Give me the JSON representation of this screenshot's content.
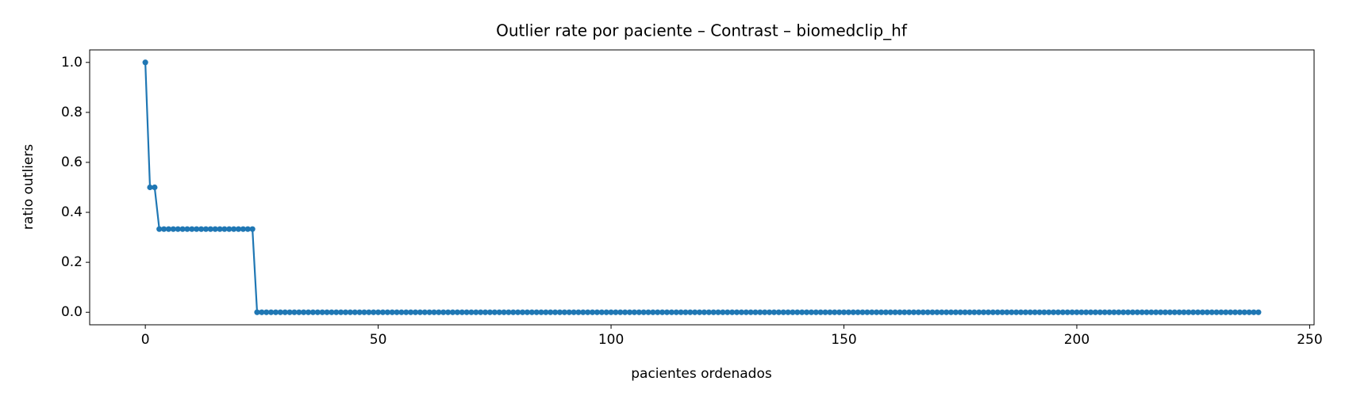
{
  "chart_data": {
    "type": "line",
    "title": "Outlier rate por paciente – Contrast – biomedclip_hf",
    "x_label": "pacientes ordenados",
    "y_label": "ratio outliers",
    "x": [
      0,
      1,
      2,
      3,
      4,
      5,
      6,
      7,
      8,
      9,
      10,
      11,
      12,
      13,
      14,
      15,
      16,
      17,
      18,
      19,
      20,
      21,
      22,
      23,
      24,
      25,
      26,
      27,
      28,
      29,
      30,
      31,
      32,
      33,
      34,
      35,
      36,
      37,
      38,
      39,
      40,
      41,
      42,
      43,
      44,
      45,
      46,
      47,
      48,
      49,
      50,
      51,
      52,
      53,
      54,
      55,
      56,
      57,
      58,
      59,
      60,
      61,
      62,
      63,
      64,
      65,
      66,
      67,
      68,
      69,
      70,
      71,
      72,
      73,
      74,
      75,
      76,
      77,
      78,
      79,
      80,
      81,
      82,
      83,
      84,
      85,
      86,
      87,
      88,
      89,
      90,
      91,
      92,
      93,
      94,
      95,
      96,
      97,
      98,
      99,
      100,
      101,
      102,
      103,
      104,
      105,
      106,
      107,
      108,
      109,
      110,
      111,
      112,
      113,
      114,
      115,
      116,
      117,
      118,
      119,
      120,
      121,
      122,
      123,
      124,
      125,
      126,
      127,
      128,
      129,
      130,
      131,
      132,
      133,
      134,
      135,
      136,
      137,
      138,
      139,
      140,
      141,
      142,
      143,
      144,
      145,
      146,
      147,
      148,
      149,
      150,
      151,
      152,
      153,
      154,
      155,
      156,
      157,
      158,
      159,
      160,
      161,
      162,
      163,
      164,
      165,
      166,
      167,
      168,
      169,
      170,
      171,
      172,
      173,
      174,
      175,
      176,
      177,
      178,
      179,
      180,
      181,
      182,
      183,
      184,
      185,
      186,
      187,
      188,
      189,
      190,
      191,
      192,
      193,
      194,
      195,
      196,
      197,
      198,
      199,
      200,
      201,
      202,
      203,
      204,
      205,
      206,
      207,
      208,
      209,
      210,
      211,
      212,
      213,
      214,
      215,
      216,
      217,
      218,
      219,
      220,
      221,
      222,
      223,
      224,
      225,
      226,
      227,
      228,
      229,
      230,
      231,
      232,
      233,
      234,
      235,
      236,
      237,
      238,
      239
    ],
    "series": [
      {
        "color": "#1f77b4",
        "values": [
          1.0,
          0.5,
          0.5,
          0.333,
          0.333,
          0.333,
          0.333,
          0.333,
          0.333,
          0.333,
          0.333,
          0.333,
          0.333,
          0.333,
          0.333,
          0.333,
          0.333,
          0.333,
          0.333,
          0.333,
          0.333,
          0.333,
          0.333,
          0.333,
          0,
          0,
          0,
          0,
          0,
          0,
          0,
          0,
          0,
          0,
          0,
          0,
          0,
          0,
          0,
          0,
          0,
          0,
          0,
          0,
          0,
          0,
          0,
          0,
          0,
          0,
          0,
          0,
          0,
          0,
          0,
          0,
          0,
          0,
          0,
          0,
          0,
          0,
          0,
          0,
          0,
          0,
          0,
          0,
          0,
          0,
          0,
          0,
          0,
          0,
          0,
          0,
          0,
          0,
          0,
          0,
          0,
          0,
          0,
          0,
          0,
          0,
          0,
          0,
          0,
          0,
          0,
          0,
          0,
          0,
          0,
          0,
          0,
          0,
          0,
          0,
          0,
          0,
          0,
          0,
          0,
          0,
          0,
          0,
          0,
          0,
          0,
          0,
          0,
          0,
          0,
          0,
          0,
          0,
          0,
          0,
          0,
          0,
          0,
          0,
          0,
          0,
          0,
          0,
          0,
          0,
          0,
          0,
          0,
          0,
          0,
          0,
          0,
          0,
          0,
          0,
          0,
          0,
          0,
          0,
          0,
          0,
          0,
          0,
          0,
          0,
          0,
          0,
          0,
          0,
          0,
          0,
          0,
          0,
          0,
          0,
          0,
          0,
          0,
          0,
          0,
          0,
          0,
          0,
          0,
          0,
          0,
          0,
          0,
          0,
          0,
          0,
          0,
          0,
          0,
          0,
          0,
          0,
          0,
          0,
          0,
          0,
          0,
          0,
          0,
          0,
          0,
          0,
          0,
          0,
          0,
          0,
          0,
          0,
          0,
          0,
          0,
          0,
          0,
          0,
          0,
          0,
          0,
          0,
          0,
          0,
          0,
          0,
          0,
          0,
          0,
          0,
          0,
          0,
          0,
          0,
          0,
          0,
          0,
          0,
          0,
          0,
          0,
          0,
          0,
          0,
          0,
          0,
          0,
          0,
          0,
          0,
          0,
          0,
          0,
          0
        ]
      }
    ],
    "xlim": [
      -11.95,
      250.95
    ],
    "xticks": [
      0,
      50,
      100,
      150,
      200,
      250
    ],
    "ylim": [
      -0.05,
      1.05
    ],
    "yticks": [
      {
        "value": 0,
        "label": "0.0"
      },
      {
        "value": 0.2,
        "label": "0.2"
      },
      {
        "value": 0.4,
        "label": "0.4"
      },
      {
        "value": 0.6,
        "label": "0.6"
      },
      {
        "value": 0.8,
        "label": "0.8"
      },
      {
        "value": 1.0,
        "label": "1.0"
      }
    ],
    "grid": false
  }
}
